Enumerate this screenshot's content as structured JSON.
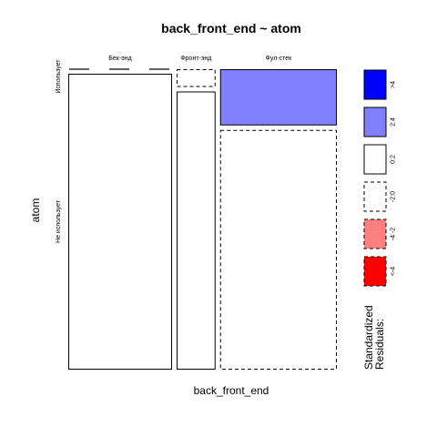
{
  "chart_data": {
    "type": "mosaic",
    "title": "back_front_end ~ atom",
    "xlabel": "back_front_end",
    "ylabel": "atom",
    "x_categories": [
      "Бек-энд",
      "Фронт-энд",
      "Фул-стек"
    ],
    "y_categories": [
      "Использует",
      "Не использует"
    ],
    "col_proportions": [
      0.4,
      0.15,
      0.45
    ],
    "cells": [
      {
        "x": "Бек-энд",
        "y": "Использует",
        "proportion": 0.0,
        "residual_class": "0:2"
      },
      {
        "x": "Бек-энд",
        "y": "Не использует",
        "proportion": 1.0,
        "residual_class": "0:2"
      },
      {
        "x": "Фронт-энд",
        "y": "Использует",
        "proportion": 0.06,
        "residual_class": "-2:0"
      },
      {
        "x": "Фронт-энд",
        "y": "Не использует",
        "proportion": 0.94,
        "residual_class": "0:2"
      },
      {
        "x": "Фул-стек",
        "y": "Использует",
        "proportion": 0.19,
        "residual_class": "2:4"
      },
      {
        "x": "Фул-стек",
        "y": "Не использует",
        "proportion": 0.81,
        "residual_class": "-2:0"
      }
    ],
    "legend": {
      "title_lines": [
        "Standardized",
        "Residuals:"
      ],
      "placement": "right",
      "items": [
        {
          "label": ">4",
          "fill": "#0000ff",
          "dashed": false
        },
        {
          "label": "2:4",
          "fill": "#8080ff",
          "dashed": false
        },
        {
          "label": "0:2",
          "fill": "#ffffff",
          "dashed": false
        },
        {
          "label": "-2:0",
          "fill": "#ffffff",
          "dashed": true
        },
        {
          "label": "-4:-2",
          "fill": "#ff8080",
          "dashed": true
        },
        {
          "label": "<-4",
          "fill": "#ff0000",
          "dashed": true
        }
      ]
    }
  }
}
